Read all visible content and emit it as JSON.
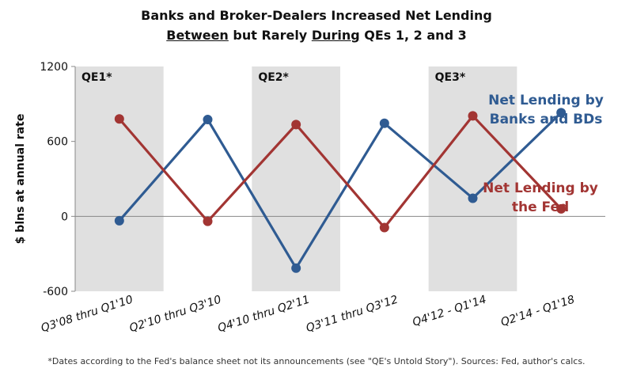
{
  "title_line1": "Banks and Broker-Dealers Increased Net Lending",
  "title_line2": {
    "w1": "Between",
    "w2": " but Rarely ",
    "w3": "During",
    "w4": " QEs 1, 2 and 3"
  },
  "footnote": "*Dates according to the Fed's balance sheet not its announcements (see \"QE's Untold Story\").  Sources: Fed, author's calcs.",
  "chart_data": {
    "type": "line",
    "categories": [
      "Q3'08 thru Q1'10",
      "Q2'10 thru Q3'10",
      "Q4'10 thru Q2'11",
      "Q3'11 thru Q3'12",
      "Q4'12 - Q1'14",
      "Q2'14 - Q1'18"
    ],
    "ylabel": "$ blns at annual rate",
    "ylim": [
      -600,
      1200
    ],
    "yticks": [
      1200,
      600,
      0,
      -600
    ],
    "series": [
      {
        "name": "Net Lending by Banks and BDs",
        "label_lines": [
          "Net Lending by",
          "Banks and BDs"
        ],
        "color": "#2F5B92",
        "values": [
          -35,
          775,
          -415,
          745,
          145,
          830
        ]
      },
      {
        "name": "Net Lending by the Fed",
        "label_lines": [
          "Net Lending by",
          "the Fed"
        ],
        "color": "#A23533",
        "values": [
          780,
          -40,
          735,
          -90,
          805,
          60
        ]
      }
    ],
    "shaded_periods": [
      {
        "label": "QE1*",
        "category_index": 0
      },
      {
        "label": "QE2*",
        "category_index": 2
      },
      {
        "label": "QE3*",
        "category_index": 4
      }
    ],
    "shade_color": "#E0E0E0"
  }
}
